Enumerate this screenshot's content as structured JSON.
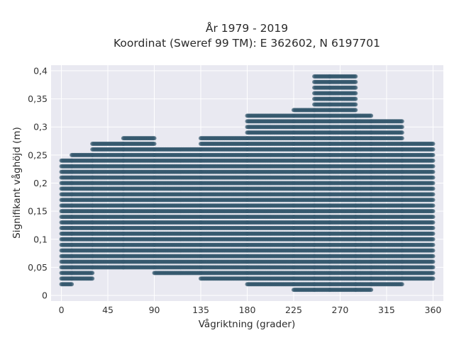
{
  "chart_data": {
    "type": "scatter",
    "title_line1": "År 1979 - 2019",
    "title_line2": "Koordinat (Sweref 99 TM): E 362602, N 6197701",
    "xlabel": "Vågriktning (grader)",
    "ylabel": "Signifikant våghöjd (m)",
    "xlim": [
      -10,
      370
    ],
    "ylim": [
      -0.01,
      0.41
    ],
    "x_ticks": [
      0,
      45,
      90,
      135,
      180,
      225,
      270,
      315,
      360
    ],
    "x_tick_labels": [
      "0",
      "45",
      "90",
      "135",
      "180",
      "225",
      "270",
      "315",
      "360"
    ],
    "y_ticks": [
      0,
      0.05,
      0.1,
      0.15,
      0.2,
      0.25,
      0.3,
      0.35,
      0.4
    ],
    "y_tick_labels": [
      "0",
      "0,05",
      "0,1",
      "0,15",
      "0,2",
      "0,25",
      "0,3",
      "0,35",
      "0,4"
    ],
    "grid": true,
    "marker_color": "#34586e",
    "plot_background": "#e9e9f1",
    "marker_opacity": 0.7,
    "x_resolution_deg": 1,
    "y_resolution_m": 0.01,
    "envelope": [
      {
        "x_range": [
          0,
          10
        ],
        "y_min": 0.02,
        "y_max": 0.24
      },
      {
        "x_range": [
          10,
          30
        ],
        "y_min": 0.03,
        "y_max": 0.25
      },
      {
        "x_range": [
          30,
          60
        ],
        "y_min": 0.05,
        "y_max": 0.27
      },
      {
        "x_range": [
          60,
          90
        ],
        "y_min": 0.05,
        "y_max": 0.28
      },
      {
        "x_range": [
          90,
          135
        ],
        "y_min": 0.04,
        "y_max": 0.26
      },
      {
        "x_range": [
          135,
          180
        ],
        "y_min": 0.03,
        "y_max": 0.28
      },
      {
        "x_range": [
          180,
          225
        ],
        "y_min": 0.02,
        "y_max": 0.32
      },
      {
        "x_range": [
          225,
          245
        ],
        "y_min": 0.01,
        "y_max": 0.33
      },
      {
        "x_range": [
          245,
          260
        ],
        "y_min": 0.01,
        "y_max": 0.39
      },
      {
        "x_range": [
          260,
          285
        ],
        "y_min": 0.01,
        "y_max": 0.39
      },
      {
        "x_range": [
          285,
          300
        ],
        "y_min": 0.01,
        "y_max": 0.32
      },
      {
        "x_range": [
          300,
          330
        ],
        "y_min": 0.02,
        "y_max": 0.31
      },
      {
        "x_range": [
          330,
          360
        ],
        "y_min": 0.03,
        "y_max": 0.27
      }
    ]
  }
}
